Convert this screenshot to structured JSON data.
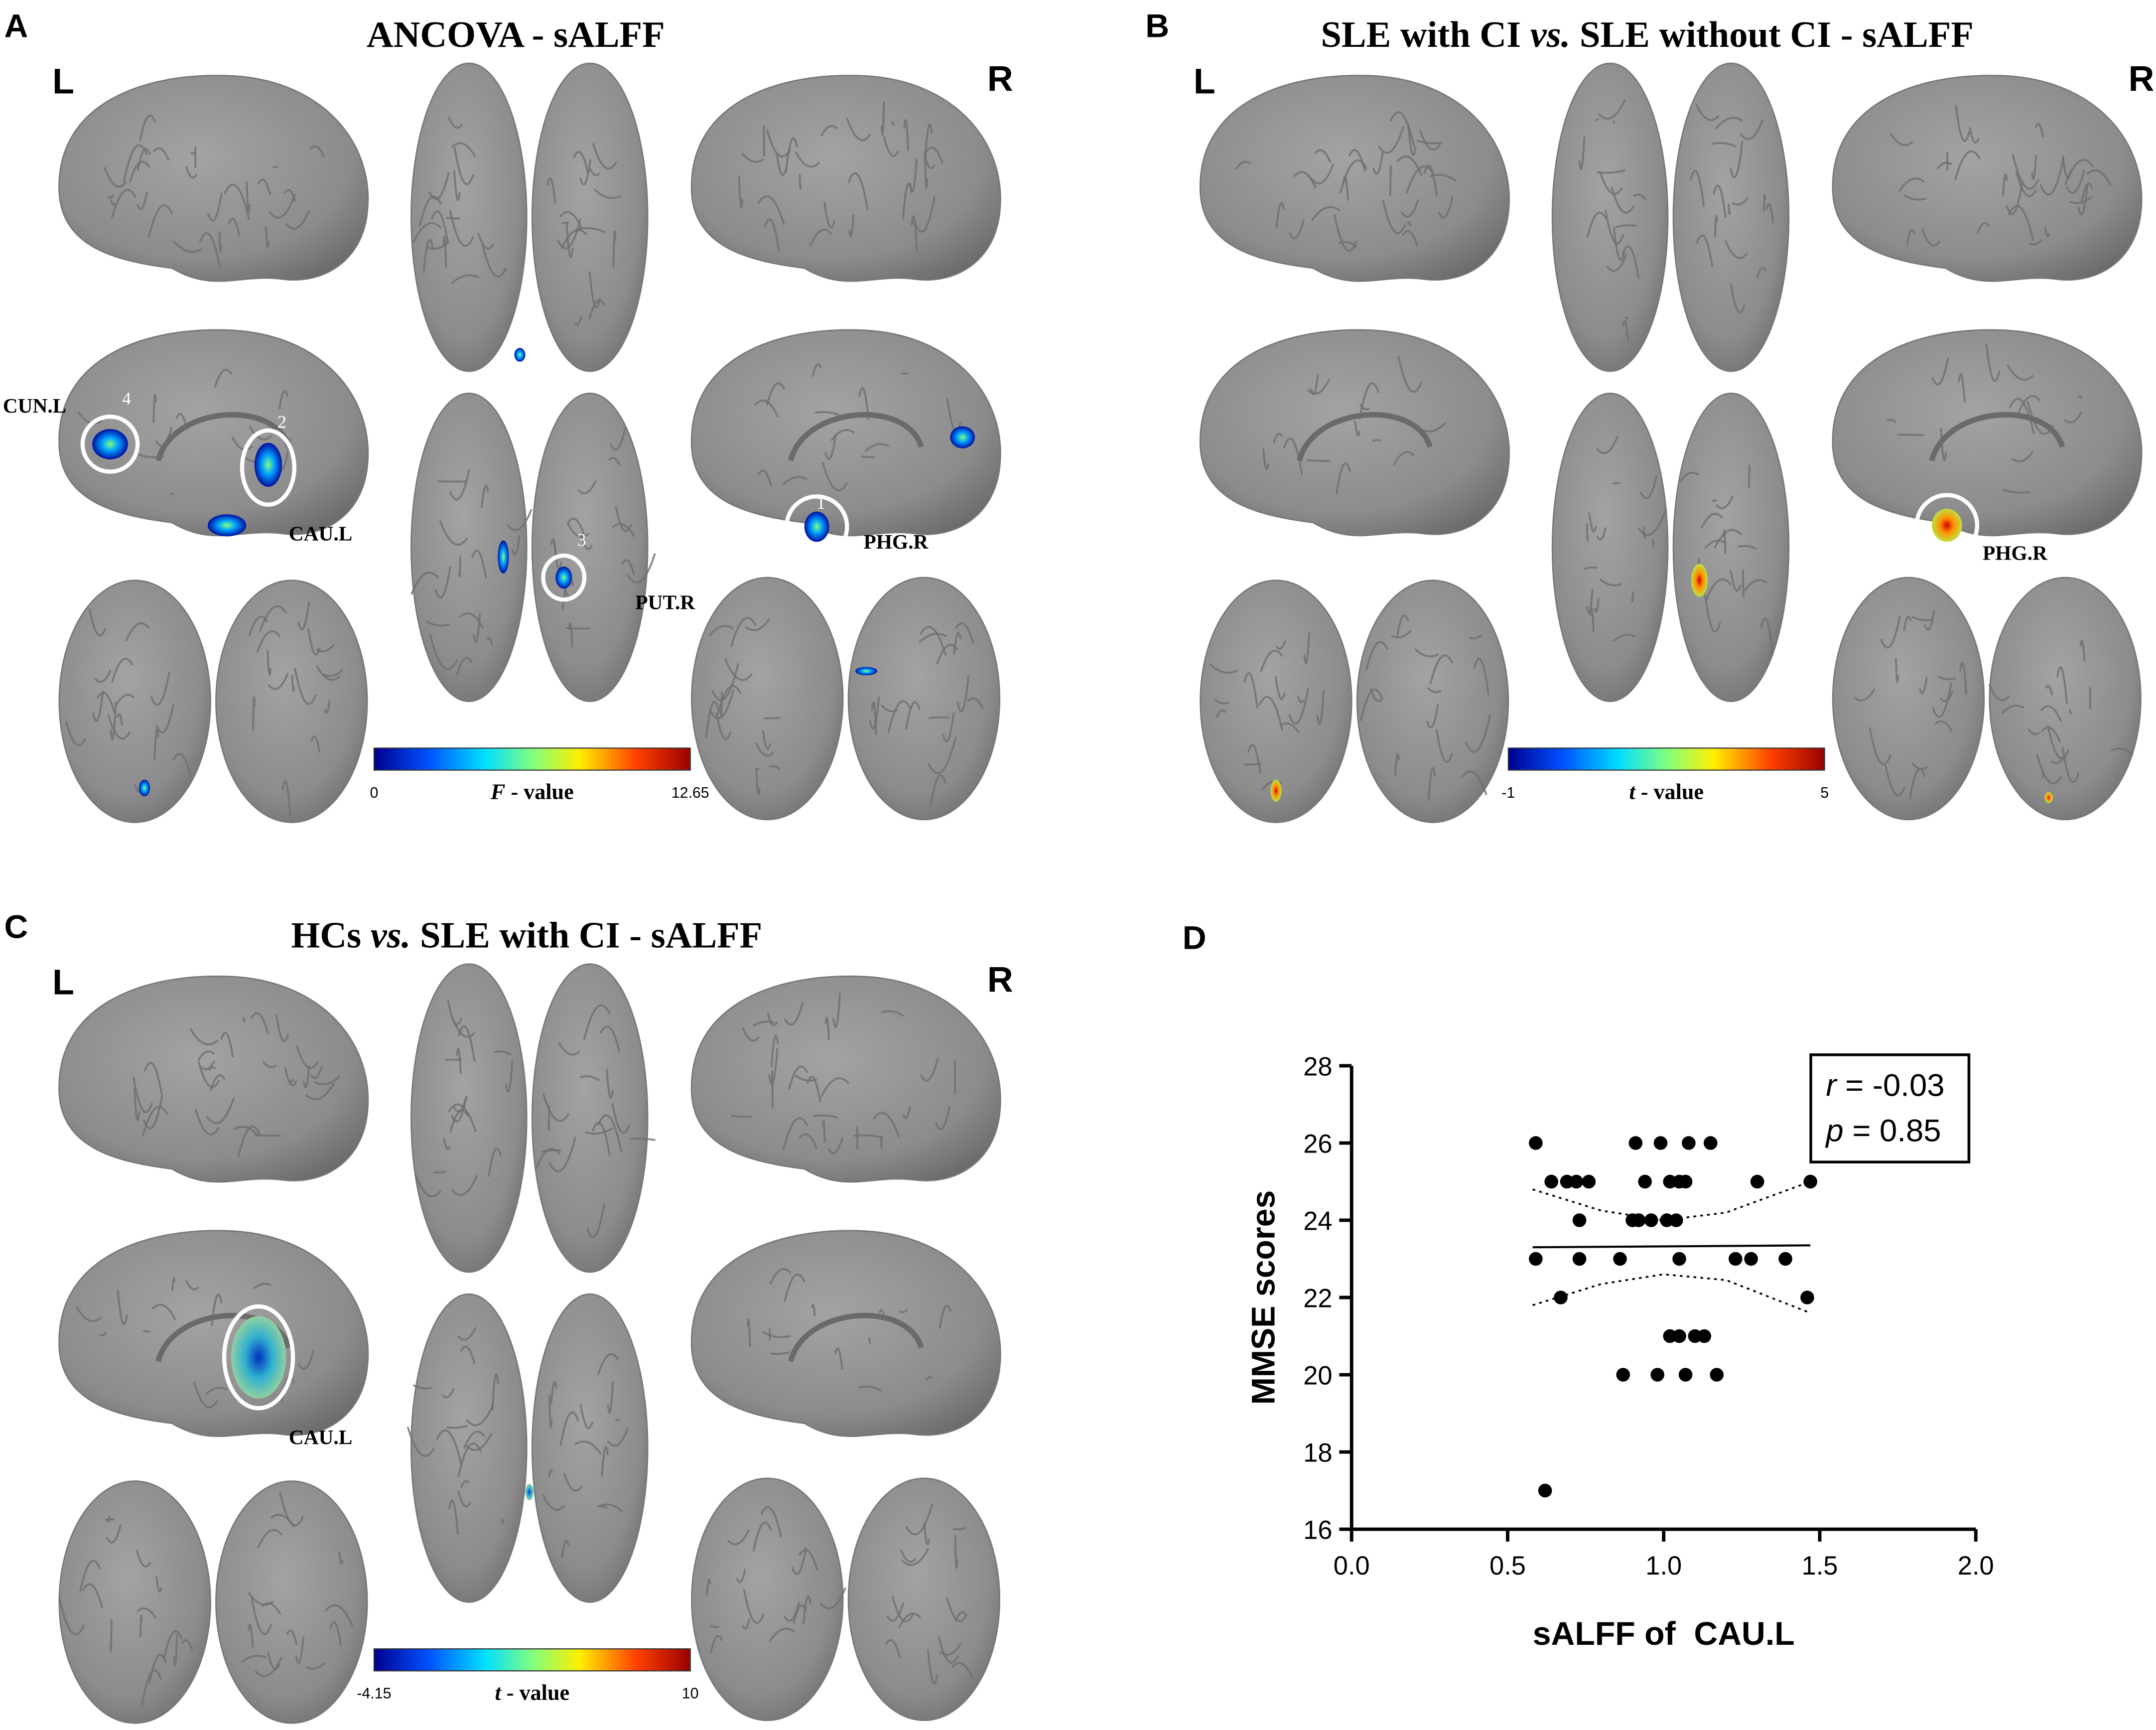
{
  "panels": [
    {
      "letter": "A",
      "title": [
        "ANCOVA - sALFF"
      ],
      "left": "L",
      "right": "R",
      "regions": [
        "CUN.L",
        "CAU.L",
        "PHG.R",
        "PUT.R"
      ],
      "markers": [
        "4",
        "2",
        "1",
        "3"
      ],
      "colorbar": {
        "min": "0",
        "label": [
          "F",
          " - value"
        ],
        "max": "12.65"
      }
    },
    {
      "letter": "B",
      "title": [
        "SLE with CI ",
        "vs.",
        " SLE without CI - sALFF"
      ],
      "left": "L",
      "right": "R",
      "regions": [
        "PHG.R"
      ],
      "colorbar": {
        "min": "-1",
        "label": [
          "t",
          " - value"
        ],
        "max": "5"
      }
    },
    {
      "letter": "C",
      "title": [
        "HCs ",
        "vs.",
        " SLE with CI - sALFF"
      ],
      "left": "L",
      "right": "R",
      "regions": [
        "CAU.L"
      ],
      "colorbar": {
        "min": "-4.15",
        "label": [
          "t",
          " - value"
        ],
        "max": "10"
      }
    }
  ],
  "chart_data": {
    "type": "scatter",
    "letter": "D",
    "x_label": "sALFF of  CAU.L",
    "y_label": "MMSE scores",
    "x": [
      0.59,
      0.91,
      0.99,
      1.08,
      1.15,
      0.64,
      0.69,
      0.72,
      0.76,
      0.94,
      1.02,
      1.05,
      1.07,
      1.3,
      1.47,
      0.73,
      0.9,
      0.92,
      0.96,
      1.01,
      1.04,
      0.59,
      0.73,
      0.86,
      1.05,
      1.23,
      1.28,
      1.39,
      0.67,
      1.46,
      1.02,
      1.05,
      1.1,
      1.13,
      0.87,
      0.98,
      1.07,
      1.17,
      0.62
    ],
    "values": [
      26,
      26,
      26,
      26,
      26,
      25,
      25,
      25,
      25,
      25,
      25,
      25,
      25,
      25,
      25,
      24,
      24,
      24,
      24,
      24,
      24,
      23,
      23,
      23,
      23,
      23,
      23,
      23,
      22,
      22,
      21,
      21,
      21,
      21,
      20,
      20,
      20,
      20,
      17
    ],
    "color": "#000000",
    "fit": {
      "x": [
        0.58,
        1.47
      ],
      "values": [
        23.3,
        23.35
      ]
    },
    "band": {
      "x": [
        0.58,
        0.8,
        1.0,
        1.2,
        1.47
      ],
      "upper": [
        24.8,
        24.25,
        24.0,
        24.2,
        25.0
      ],
      "lower": [
        21.8,
        22.35,
        22.6,
        22.45,
        21.6
      ]
    },
    "xlim": [
      0,
      2
    ],
    "ylim": [
      16,
      28
    ],
    "xticks": [
      {
        "value": 0,
        "label": "0.0"
      },
      0.5,
      {
        "value": 1,
        "label": "1.0"
      },
      1.5,
      {
        "value": 2,
        "label": "2.0"
      }
    ],
    "yticks": [
      16,
      18,
      20,
      22,
      24,
      26,
      28
    ],
    "annotations": [
      {
        "symbol": "r",
        "text": " = -0.03"
      },
      {
        "symbol": "p",
        "text": " = 0.85"
      }
    ]
  }
}
